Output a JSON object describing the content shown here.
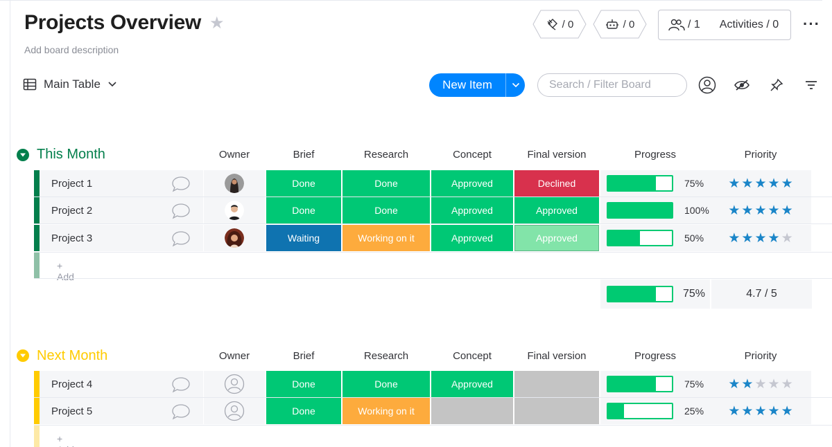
{
  "header": {
    "title": "Projects Overview",
    "description": "Add board description",
    "integrations_count": "/ 0",
    "automations_count": "/ 0",
    "members_count": "/ 1",
    "activities": "Activities / 0"
  },
  "toolbar": {
    "view_label": "Main Table",
    "new_item_label": "New Item",
    "search_placeholder": "Search / Filter Board"
  },
  "columns": [
    "Owner",
    "Brief",
    "Research",
    "Concept",
    "Final version",
    "Progress",
    "Priority"
  ],
  "colors": {
    "done": "#00c875",
    "approved": "#00c875",
    "declined": "#d8314d",
    "waiting": "#0f73b0",
    "working": "#fdab3d",
    "approved_light": "#82e4a9",
    "empty": "#c4c4c4",
    "this_month": "#037f4c",
    "next_month": "#ffcb00",
    "accent": "#0085ff"
  },
  "groups": [
    {
      "title": "This Month",
      "add_label": "+ Add",
      "rows": [
        {
          "name": "Project 1",
          "brief": "Done",
          "research": "Done",
          "concept": "Approved",
          "final": "Declined",
          "progress": "75%",
          "progress_value": 0.75,
          "stars": 5
        },
        {
          "name": "Project 2",
          "brief": "Done",
          "research": "Done",
          "concept": "Approved",
          "final": "Approved",
          "progress": "100%",
          "progress_value": 1.0,
          "stars": 5
        },
        {
          "name": "Project 3",
          "brief": "Waiting",
          "research": "Working on it",
          "concept": "Approved",
          "final": "Approved",
          "progress": "50%",
          "progress_value": 0.5,
          "stars": 4
        }
      ],
      "summary_progress": "75%",
      "summary_progress_value": 0.75,
      "summary_priority": "4.7 / 5"
    },
    {
      "title": "Next Month",
      "add_label": "+ Add",
      "rows": [
        {
          "name": "Project 4",
          "brief": "Done",
          "research": "Done",
          "concept": "Approved",
          "final": "",
          "progress": "75%",
          "progress_value": 0.75,
          "stars": 2
        },
        {
          "name": "Project 5",
          "brief": "Done",
          "research": "Working on it",
          "concept": "",
          "final": "",
          "progress": "25%",
          "progress_value": 0.25,
          "stars": 5
        }
      ]
    }
  ]
}
